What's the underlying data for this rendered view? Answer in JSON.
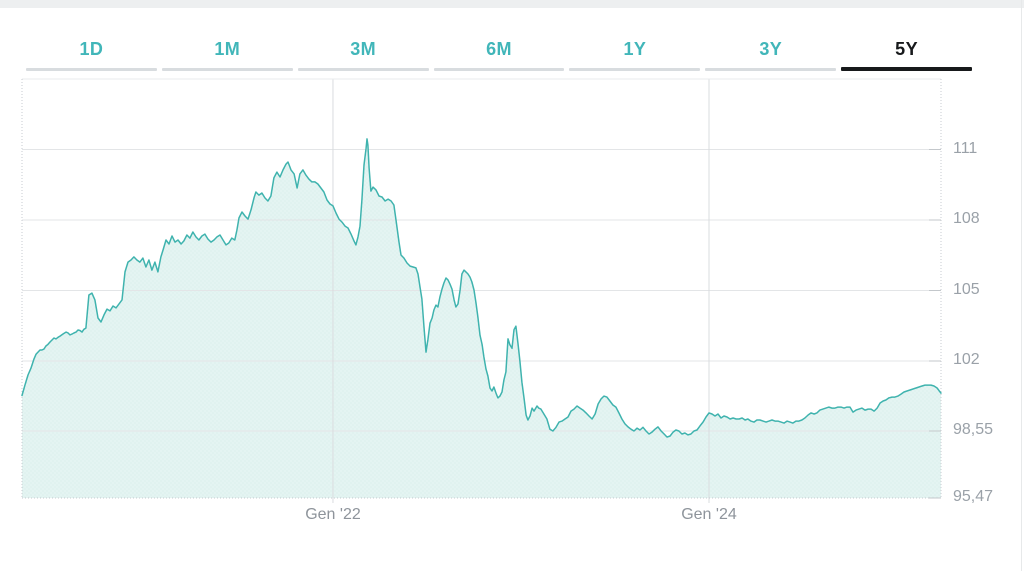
{
  "colors": {
    "bg": "#ffffff",
    "top_strip": "#edeff0",
    "page_edge": "#e7e9ea",
    "teal_text": "#41b6b9",
    "tab_bar": "#d8dcdf",
    "tab_active": "#17191b",
    "line": "#3fb3ae",
    "fill": "#e4f4f2",
    "fill_dot": "#cfe9e6",
    "grid_h": "#e3e5e7",
    "grid_v": "#d9dcdf",
    "border_top": "#e9ebec",
    "border_dotted": "#c7cbd0",
    "tick": "#c3c7cb",
    "y_label": "#9aa1a8",
    "x_label": "#8e949b"
  },
  "tabs": {
    "items": [
      {
        "label": "1D",
        "active": false
      },
      {
        "label": "1M",
        "active": false
      },
      {
        "label": "3M",
        "active": false
      },
      {
        "label": "6M",
        "active": false
      },
      {
        "label": "1Y",
        "active": false
      },
      {
        "label": "3Y",
        "active": false
      },
      {
        "label": "5Y",
        "active": true
      }
    ]
  },
  "chart_data": {
    "type": "area",
    "title": "",
    "xlabel": "",
    "ylabel": "",
    "grid": true,
    "legend": false,
    "x_range_years": [
      2020.346,
      2025.234
    ],
    "x_ticks": [
      {
        "label": "Gen '22",
        "year": 2022.0
      },
      {
        "label": "Gen '24",
        "year": 2024.0
      }
    ],
    "y_ticks": [
      {
        "label": "111",
        "value": 111
      },
      {
        "label": "108",
        "value": 108
      },
      {
        "label": "105",
        "value": 105
      },
      {
        "label": "102",
        "value": 102
      },
      {
        "label": "98,55",
        "value": 98.55
      },
      {
        "label": "95,47",
        "value": 95.47
      }
    ],
    "points": [
      [
        2020.346,
        100.3
      ],
      [
        2020.362,
        100.82
      ],
      [
        2020.378,
        101.31
      ],
      [
        2020.394,
        101.65
      ],
      [
        2020.41,
        102.09
      ],
      [
        2020.431,
        102.38
      ],
      [
        2020.452,
        102.47
      ],
      [
        2020.473,
        102.64
      ],
      [
        2020.495,
        102.81
      ],
      [
        2020.516,
        102.98
      ],
      [
        2020.527,
        102.94
      ],
      [
        2020.548,
        103.06
      ],
      [
        2020.58,
        103.23
      ],
      [
        2020.601,
        103.11
      ],
      [
        2020.622,
        103.19
      ],
      [
        2020.644,
        103.32
      ],
      [
        2020.665,
        103.23
      ],
      [
        2020.686,
        103.4
      ],
      [
        2020.702,
        104.81
      ],
      [
        2020.718,
        104.89
      ],
      [
        2020.734,
        104.6
      ],
      [
        2020.75,
        103.83
      ],
      [
        2020.766,
        103.66
      ],
      [
        2020.782,
        103.96
      ],
      [
        2020.798,
        104.21
      ],
      [
        2020.814,
        104.13
      ],
      [
        2020.83,
        104.34
      ],
      [
        2020.846,
        104.26
      ],
      [
        2020.862,
        104.43
      ],
      [
        2020.878,
        104.6
      ],
      [
        2020.894,
        105.79
      ],
      [
        2020.91,
        106.21
      ],
      [
        2020.926,
        106.3
      ],
      [
        2020.941,
        106.43
      ],
      [
        2020.957,
        106.3
      ],
      [
        2020.973,
        106.21
      ],
      [
        2020.989,
        106.38
      ],
      [
        2021.005,
        106.0
      ],
      [
        2021.021,
        106.3
      ],
      [
        2021.037,
        105.87
      ],
      [
        2021.053,
        106.21
      ],
      [
        2021.069,
        105.79
      ],
      [
        2021.085,
        106.43
      ],
      [
        2021.096,
        106.72
      ],
      [
        2021.112,
        107.15
      ],
      [
        2021.128,
        106.98
      ],
      [
        2021.144,
        107.32
      ],
      [
        2021.16,
        107.06
      ],
      [
        2021.176,
        107.15
      ],
      [
        2021.192,
        106.98
      ],
      [
        2021.207,
        107.11
      ],
      [
        2021.223,
        107.36
      ],
      [
        2021.239,
        107.23
      ],
      [
        2021.255,
        107.49
      ],
      [
        2021.271,
        107.28
      ],
      [
        2021.287,
        107.15
      ],
      [
        2021.303,
        107.32
      ],
      [
        2021.319,
        107.4
      ],
      [
        2021.335,
        107.19
      ],
      [
        2021.351,
        107.06
      ],
      [
        2021.367,
        107.15
      ],
      [
        2021.383,
        107.28
      ],
      [
        2021.399,
        107.36
      ],
      [
        2021.415,
        107.15
      ],
      [
        2021.431,
        106.94
      ],
      [
        2021.446,
        107.02
      ],
      [
        2021.462,
        107.23
      ],
      [
        2021.478,
        107.15
      ],
      [
        2021.489,
        107.57
      ],
      [
        2021.5,
        108.09
      ],
      [
        2021.516,
        108.34
      ],
      [
        2021.532,
        108.17
      ],
      [
        2021.548,
        108.04
      ],
      [
        2021.564,
        108.43
      ],
      [
        2021.58,
        108.94
      ],
      [
        2021.59,
        109.19
      ],
      [
        2021.606,
        109.06
      ],
      [
        2021.622,
        109.15
      ],
      [
        2021.638,
        108.94
      ],
      [
        2021.654,
        108.81
      ],
      [
        2021.67,
        109.02
      ],
      [
        2021.686,
        109.79
      ],
      [
        2021.702,
        110.04
      ],
      [
        2021.718,
        109.83
      ],
      [
        2021.734,
        110.13
      ],
      [
        2021.75,
        110.38
      ],
      [
        2021.761,
        110.47
      ],
      [
        2021.777,
        110.13
      ],
      [
        2021.793,
        109.96
      ],
      [
        2021.809,
        109.36
      ],
      [
        2021.824,
        109.96
      ],
      [
        2021.84,
        110.13
      ],
      [
        2021.856,
        109.91
      ],
      [
        2021.872,
        109.74
      ],
      [
        2021.888,
        109.62
      ],
      [
        2021.904,
        109.62
      ],
      [
        2021.92,
        109.53
      ],
      [
        2021.936,
        109.36
      ],
      [
        2021.952,
        109.19
      ],
      [
        2021.968,
        108.85
      ],
      [
        2021.984,
        108.68
      ],
      [
        2022.0,
        108.6
      ],
      [
        2022.016,
        108.3
      ],
      [
        2022.032,
        108.04
      ],
      [
        2022.048,
        107.91
      ],
      [
        2022.064,
        107.74
      ],
      [
        2022.08,
        107.66
      ],
      [
        2022.096,
        107.4
      ],
      [
        2022.112,
        107.11
      ],
      [
        2022.122,
        106.94
      ],
      [
        2022.133,
        107.28
      ],
      [
        2022.144,
        107.74
      ],
      [
        2022.154,
        108.85
      ],
      [
        2022.165,
        110.34
      ],
      [
        2022.176,
        111.06
      ],
      [
        2022.181,
        111.45
      ],
      [
        2022.186,
        111.19
      ],
      [
        2022.192,
        110.21
      ],
      [
        2022.202,
        109.23
      ],
      [
        2022.213,
        109.4
      ],
      [
        2022.229,
        109.28
      ],
      [
        2022.245,
        109.02
      ],
      [
        2022.261,
        108.98
      ],
      [
        2022.277,
        108.81
      ],
      [
        2022.293,
        108.89
      ],
      [
        2022.309,
        108.81
      ],
      [
        2022.324,
        108.64
      ],
      [
        2022.335,
        108.0
      ],
      [
        2022.351,
        107.06
      ],
      [
        2022.362,
        106.51
      ],
      [
        2022.378,
        106.38
      ],
      [
        2022.394,
        106.17
      ],
      [
        2022.41,
        106.04
      ],
      [
        2022.426,
        106.0
      ],
      [
        2022.441,
        105.96
      ],
      [
        2022.452,
        105.7
      ],
      [
        2022.463,
        105.15
      ],
      [
        2022.473,
        104.64
      ],
      [
        2022.484,
        103.44
      ],
      [
        2022.495,
        102.38
      ],
      [
        2022.505,
        102.91
      ],
      [
        2022.516,
        103.61
      ],
      [
        2022.527,
        103.83
      ],
      [
        2022.537,
        104.17
      ],
      [
        2022.548,
        104.38
      ],
      [
        2022.558,
        104.3
      ],
      [
        2022.569,
        104.72
      ],
      [
        2022.58,
        105.06
      ],
      [
        2022.59,
        105.32
      ],
      [
        2022.601,
        105.53
      ],
      [
        2022.612,
        105.45
      ],
      [
        2022.622,
        105.28
      ],
      [
        2022.633,
        105.06
      ],
      [
        2022.644,
        104.6
      ],
      [
        2022.654,
        104.3
      ],
      [
        2022.665,
        104.43
      ],
      [
        2022.676,
        105.02
      ],
      [
        2022.686,
        105.7
      ],
      [
        2022.697,
        105.87
      ],
      [
        2022.707,
        105.79
      ],
      [
        2022.718,
        105.7
      ],
      [
        2022.729,
        105.57
      ],
      [
        2022.739,
        105.36
      ],
      [
        2022.75,
        105.02
      ],
      [
        2022.761,
        104.47
      ],
      [
        2022.771,
        103.87
      ],
      [
        2022.782,
        103.1
      ],
      [
        2022.793,
        102.7
      ],
      [
        2022.803,
        102.17
      ],
      [
        2022.814,
        101.6
      ],
      [
        2022.824,
        101.26
      ],
      [
        2022.835,
        100.67
      ],
      [
        2022.846,
        100.52
      ],
      [
        2022.856,
        100.72
      ],
      [
        2022.867,
        100.42
      ],
      [
        2022.877,
        100.18
      ],
      [
        2022.888,
        100.27
      ],
      [
        2022.899,
        100.47
      ],
      [
        2022.909,
        101.06
      ],
      [
        2022.92,
        101.46
      ],
      [
        2022.931,
        102.94
      ],
      [
        2022.941,
        102.69
      ],
      [
        2022.952,
        102.54
      ],
      [
        2022.963,
        103.33
      ],
      [
        2022.973,
        103.48
      ],
      [
        2022.984,
        102.74
      ],
      [
        2022.995,
        101.95
      ],
      [
        2023.005,
        100.96
      ],
      [
        2023.016,
        100.18
      ],
      [
        2023.027,
        99.34
      ],
      [
        2023.037,
        99.09
      ],
      [
        2023.048,
        99.29
      ],
      [
        2023.059,
        99.68
      ],
      [
        2023.069,
        99.53
      ],
      [
        2023.085,
        99.78
      ],
      [
        2023.106,
        99.63
      ],
      [
        2023.122,
        99.39
      ],
      [
        2023.138,
        99.14
      ],
      [
        2023.154,
        98.64
      ],
      [
        2023.17,
        98.55
      ],
      [
        2023.186,
        98.73
      ],
      [
        2023.202,
        98.99
      ],
      [
        2023.218,
        99.04
      ],
      [
        2023.234,
        99.14
      ],
      [
        2023.25,
        99.24
      ],
      [
        2023.266,
        99.53
      ],
      [
        2023.282,
        99.63
      ],
      [
        2023.298,
        99.78
      ],
      [
        2023.314,
        99.68
      ],
      [
        2023.33,
        99.58
      ],
      [
        2023.346,
        99.44
      ],
      [
        2023.362,
        99.29
      ],
      [
        2023.378,
        99.14
      ],
      [
        2023.394,
        99.39
      ],
      [
        2023.41,
        99.88
      ],
      [
        2023.426,
        100.13
      ],
      [
        2023.441,
        100.27
      ],
      [
        2023.457,
        100.22
      ],
      [
        2023.473,
        100.03
      ],
      [
        2023.489,
        99.83
      ],
      [
        2023.505,
        99.73
      ],
      [
        2023.521,
        99.44
      ],
      [
        2023.537,
        99.14
      ],
      [
        2023.553,
        98.9
      ],
      [
        2023.569,
        98.75
      ],
      [
        2023.585,
        98.64
      ],
      [
        2023.601,
        98.55
      ],
      [
        2023.617,
        98.69
      ],
      [
        2023.633,
        98.6
      ],
      [
        2023.649,
        98.73
      ],
      [
        2023.665,
        98.55
      ],
      [
        2023.681,
        98.41
      ],
      [
        2023.697,
        98.5
      ],
      [
        2023.713,
        98.64
      ],
      [
        2023.729,
        98.75
      ],
      [
        2023.745,
        98.55
      ],
      [
        2023.761,
        98.41
      ],
      [
        2023.777,
        98.27
      ],
      [
        2023.793,
        98.32
      ],
      [
        2023.809,
        98.5
      ],
      [
        2023.824,
        98.6
      ],
      [
        2023.84,
        98.55
      ],
      [
        2023.856,
        98.41
      ],
      [
        2023.872,
        98.46
      ],
      [
        2023.888,
        98.37
      ],
      [
        2023.904,
        98.41
      ],
      [
        2023.92,
        98.55
      ],
      [
        2023.936,
        98.6
      ],
      [
        2023.952,
        98.8
      ],
      [
        2023.968,
        98.99
      ],
      [
        2023.984,
        99.24
      ],
      [
        2024.0,
        99.44
      ],
      [
        2024.016,
        99.39
      ],
      [
        2024.032,
        99.29
      ],
      [
        2024.048,
        99.39
      ],
      [
        2024.064,
        99.19
      ],
      [
        2024.08,
        99.29
      ],
      [
        2024.096,
        99.24
      ],
      [
        2024.112,
        99.14
      ],
      [
        2024.128,
        99.19
      ],
      [
        2024.144,
        99.14
      ],
      [
        2024.16,
        99.14
      ],
      [
        2024.176,
        99.19
      ],
      [
        2024.192,
        99.09
      ],
      [
        2024.207,
        99.14
      ],
      [
        2024.223,
        99.04
      ],
      [
        2024.239,
        98.99
      ],
      [
        2024.255,
        99.09
      ],
      [
        2024.271,
        99.09
      ],
      [
        2024.287,
        99.04
      ],
      [
        2024.303,
        98.99
      ],
      [
        2024.319,
        99.04
      ],
      [
        2024.335,
        99.09
      ],
      [
        2024.351,
        99.04
      ],
      [
        2024.367,
        99.04
      ],
      [
        2024.383,
        98.99
      ],
      [
        2024.399,
        98.94
      ],
      [
        2024.415,
        99.04
      ],
      [
        2024.431,
        98.99
      ],
      [
        2024.446,
        98.94
      ],
      [
        2024.462,
        99.04
      ],
      [
        2024.478,
        99.04
      ],
      [
        2024.494,
        99.09
      ],
      [
        2024.51,
        99.19
      ],
      [
        2024.527,
        99.34
      ],
      [
        2024.543,
        99.44
      ],
      [
        2024.559,
        99.39
      ],
      [
        2024.574,
        99.44
      ],
      [
        2024.59,
        99.58
      ],
      [
        2024.606,
        99.63
      ],
      [
        2024.622,
        99.68
      ],
      [
        2024.638,
        99.73
      ],
      [
        2024.654,
        99.68
      ],
      [
        2024.67,
        99.68
      ],
      [
        2024.686,
        99.73
      ],
      [
        2024.702,
        99.73
      ],
      [
        2024.718,
        99.68
      ],
      [
        2024.734,
        99.73
      ],
      [
        2024.75,
        99.73
      ],
      [
        2024.766,
        99.48
      ],
      [
        2024.782,
        99.58
      ],
      [
        2024.798,
        99.63
      ],
      [
        2024.814,
        99.68
      ],
      [
        2024.83,
        99.58
      ],
      [
        2024.846,
        99.63
      ],
      [
        2024.862,
        99.63
      ],
      [
        2024.878,
        99.53
      ],
      [
        2024.894,
        99.68
      ],
      [
        2024.91,
        99.93
      ],
      [
        2024.926,
        100.03
      ],
      [
        2024.941,
        100.08
      ],
      [
        2024.957,
        100.18
      ],
      [
        2024.973,
        100.22
      ],
      [
        2024.989,
        100.22
      ],
      [
        2025.005,
        100.27
      ],
      [
        2025.021,
        100.37
      ],
      [
        2025.037,
        100.47
      ],
      [
        2025.053,
        100.52
      ],
      [
        2025.069,
        100.57
      ],
      [
        2025.085,
        100.62
      ],
      [
        2025.101,
        100.67
      ],
      [
        2025.117,
        100.72
      ],
      [
        2025.133,
        100.77
      ],
      [
        2025.149,
        100.81
      ],
      [
        2025.165,
        100.81
      ],
      [
        2025.181,
        100.81
      ],
      [
        2025.197,
        100.77
      ],
      [
        2025.213,
        100.67
      ],
      [
        2025.234,
        100.42
      ]
    ]
  }
}
